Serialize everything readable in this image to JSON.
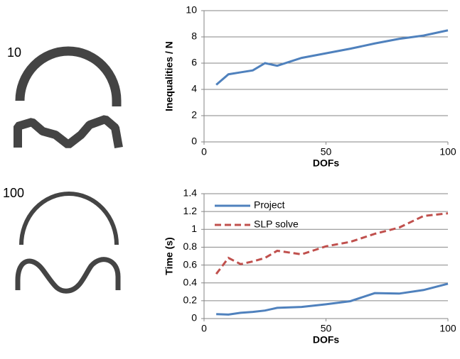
{
  "left_labels": [
    "10",
    "100"
  ],
  "chart_data": [
    {
      "type": "line",
      "x_label": "DOFs",
      "y_label": "Inequalities / N",
      "x": [
        5,
        10,
        15,
        20,
        25,
        30,
        40,
        50,
        60,
        70,
        80,
        90,
        100
      ],
      "series": [
        {
          "name": null,
          "color": "#4f81bd",
          "style": "solid",
          "values": [
            4.35,
            5.15,
            5.3,
            5.45,
            6.0,
            5.8,
            6.4,
            6.75,
            7.1,
            7.5,
            7.85,
            8.1,
            8.5
          ]
        }
      ],
      "xlim": [
        0,
        100
      ],
      "xticks": [
        0,
        50,
        100
      ],
      "ylim": [
        0,
        10
      ],
      "yticks": [
        0,
        2,
        4,
        6,
        8,
        10
      ],
      "grid": true,
      "legend": null
    },
    {
      "type": "line",
      "x_label": "DOFs",
      "y_label": "Time (s)",
      "x": [
        5,
        10,
        15,
        20,
        25,
        30,
        40,
        50,
        60,
        70,
        80,
        90,
        100
      ],
      "series": [
        {
          "name": "Project",
          "color": "#4f81bd",
          "style": "solid",
          "values": [
            0.05,
            0.045,
            0.065,
            0.075,
            0.09,
            0.12,
            0.13,
            0.16,
            0.195,
            0.285,
            0.28,
            0.32,
            0.39
          ]
        },
        {
          "name": "SLP solve",
          "color": "#c0504d",
          "style": "dashed",
          "values": [
            0.5,
            0.68,
            0.61,
            0.64,
            0.68,
            0.76,
            0.72,
            0.81,
            0.86,
            0.95,
            1.02,
            1.15,
            1.18
          ]
        }
      ],
      "xlim": [
        0,
        100
      ],
      "xticks": [
        0,
        50,
        100
      ],
      "ylim": [
        0,
        1.4
      ],
      "yticks": [
        0,
        0.2,
        0.4,
        0.6,
        0.8,
        1,
        1.2,
        1.4
      ],
      "grid": true,
      "legend": "upper-left"
    }
  ]
}
